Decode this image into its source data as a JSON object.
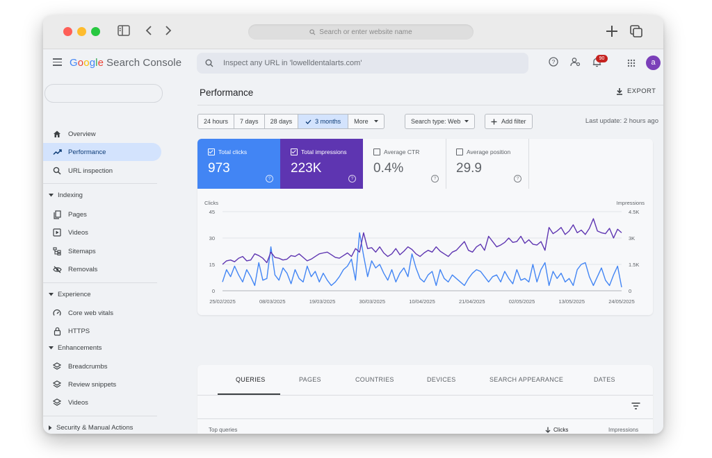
{
  "browser": {
    "url_placeholder": "Search or enter website name"
  },
  "app": {
    "logo_google": "Google",
    "logo_product": "Search Console",
    "inspect_placeholder": "Inspect any URL in 'lowelldentalarts.com'",
    "notifications_count": "90",
    "avatar_letter": "a"
  },
  "sidebar": {
    "top_items": [
      {
        "label": "Overview",
        "icon": "home-icon"
      },
      {
        "label": "Performance",
        "icon": "trending-icon",
        "active": true
      },
      {
        "label": "URL inspection",
        "icon": "search-icon"
      }
    ],
    "sections": {
      "indexing": "Indexing",
      "experience": "Experience",
      "enhancements": "Enhancements",
      "security": "Security & Manual Actions"
    },
    "indexing_items": [
      "Pages",
      "Videos",
      "Sitemaps",
      "Removals"
    ],
    "experience_items": [
      "Core web vitals",
      "HTTPS"
    ],
    "enhancements_items": [
      "Breadcrumbs",
      "Review snippets",
      "Videos"
    ]
  },
  "main": {
    "title": "Performance",
    "export_label": "EXPORT",
    "date_ranges": [
      "24 hours",
      "7 days",
      "28 days",
      "3 months",
      "More"
    ],
    "selected_range": "3 months",
    "search_type": "Search type: Web",
    "add_filter": "Add filter",
    "last_update": "Last update: 2 hours ago",
    "metrics": [
      {
        "label": "Total clicks",
        "value": "973",
        "checked": true,
        "color": "#4285f4"
      },
      {
        "label": "Total impressions",
        "value": "223K",
        "checked": true,
        "color": "#5e35b1"
      },
      {
        "label": "Average CTR",
        "value": "0.4%",
        "checked": false
      },
      {
        "label": "Average position",
        "value": "29.9",
        "checked": false
      }
    ],
    "tabs": [
      "QUERIES",
      "PAGES",
      "COUNTRIES",
      "DEVICES",
      "SEARCH APPEARANCE",
      "DATES"
    ],
    "active_tab": "QUERIES",
    "table_headers": {
      "left": "Top queries",
      "clicks": "Clicks",
      "impressions": "Impressions"
    }
  },
  "chart_data": {
    "type": "line",
    "left_axis_label": "Clicks",
    "right_axis_label": "Impressions",
    "left_ticks": [
      "45",
      "30",
      "15",
      "0"
    ],
    "right_ticks": [
      "4.5K",
      "3K",
      "1.5K",
      "0"
    ],
    "ylim_left": [
      0,
      45
    ],
    "ylim_right": [
      0,
      4500
    ],
    "x_ticks": [
      "25/02/2025",
      "08/03/2025",
      "19/03/2025",
      "30/03/2025",
      "10/04/2025",
      "21/04/2025",
      "02/05/2025",
      "13/05/2025",
      "24/05/2025"
    ],
    "series": [
      {
        "name": "Clicks",
        "color": "#4285f4",
        "axis": "left",
        "values": [
          5,
          12,
          8,
          14,
          9,
          5,
          12,
          8,
          3,
          16,
          6,
          7,
          25,
          9,
          6,
          13,
          10,
          4,
          12,
          7,
          5,
          14,
          8,
          11,
          5,
          10,
          6,
          3,
          5,
          8,
          12,
          14,
          18,
          6,
          33,
          20,
          8,
          17,
          13,
          15,
          10,
          6,
          12,
          5,
          10,
          13,
          8,
          21,
          13,
          7,
          5,
          9,
          11,
          3,
          12,
          7,
          5,
          9,
          7,
          5,
          3,
          7,
          10,
          12,
          11,
          8,
          5,
          8,
          9,
          5,
          11,
          7,
          4,
          12,
          6,
          7,
          5,
          15,
          5,
          12,
          16,
          3,
          11,
          7,
          10,
          5,
          7,
          3,
          12,
          15,
          16,
          8,
          3,
          8,
          13,
          6,
          3,
          9,
          14,
          2
        ]
      },
      {
        "name": "Impressions",
        "color": "#5e35b1",
        "axis": "right",
        "values": [
          1500,
          1700,
          1750,
          1650,
          1850,
          1950,
          1700,
          1750,
          2100,
          2000,
          1850,
          1600,
          2200,
          1900,
          1850,
          1750,
          1800,
          2000,
          1950,
          2100,
          1900,
          1700,
          1800,
          1950,
          2100,
          2150,
          2200,
          2050,
          1900,
          1850,
          2000,
          2150,
          1950,
          2400,
          2200,
          3300,
          2400,
          2450,
          2200,
          2500,
          2150,
          1950,
          2100,
          2400,
          2050,
          2250,
          2500,
          2350,
          2100,
          1950,
          2150,
          2300,
          2200,
          2500,
          2250,
          2100,
          1950,
          2200,
          2300,
          2550,
          2800,
          2300,
          2200,
          2500,
          2650,
          2300,
          3100,
          2800,
          2500,
          2600,
          2750,
          3000,
          2750,
          2800,
          3100,
          2700,
          2900,
          2650,
          2600,
          2800,
          2300,
          3600,
          3250,
          3400,
          3600,
          3200,
          3400,
          3750,
          3300,
          3450,
          3200,
          3550,
          4100,
          3400,
          3300,
          3250,
          3550,
          3000,
          3500,
          3300
        ]
      }
    ]
  }
}
